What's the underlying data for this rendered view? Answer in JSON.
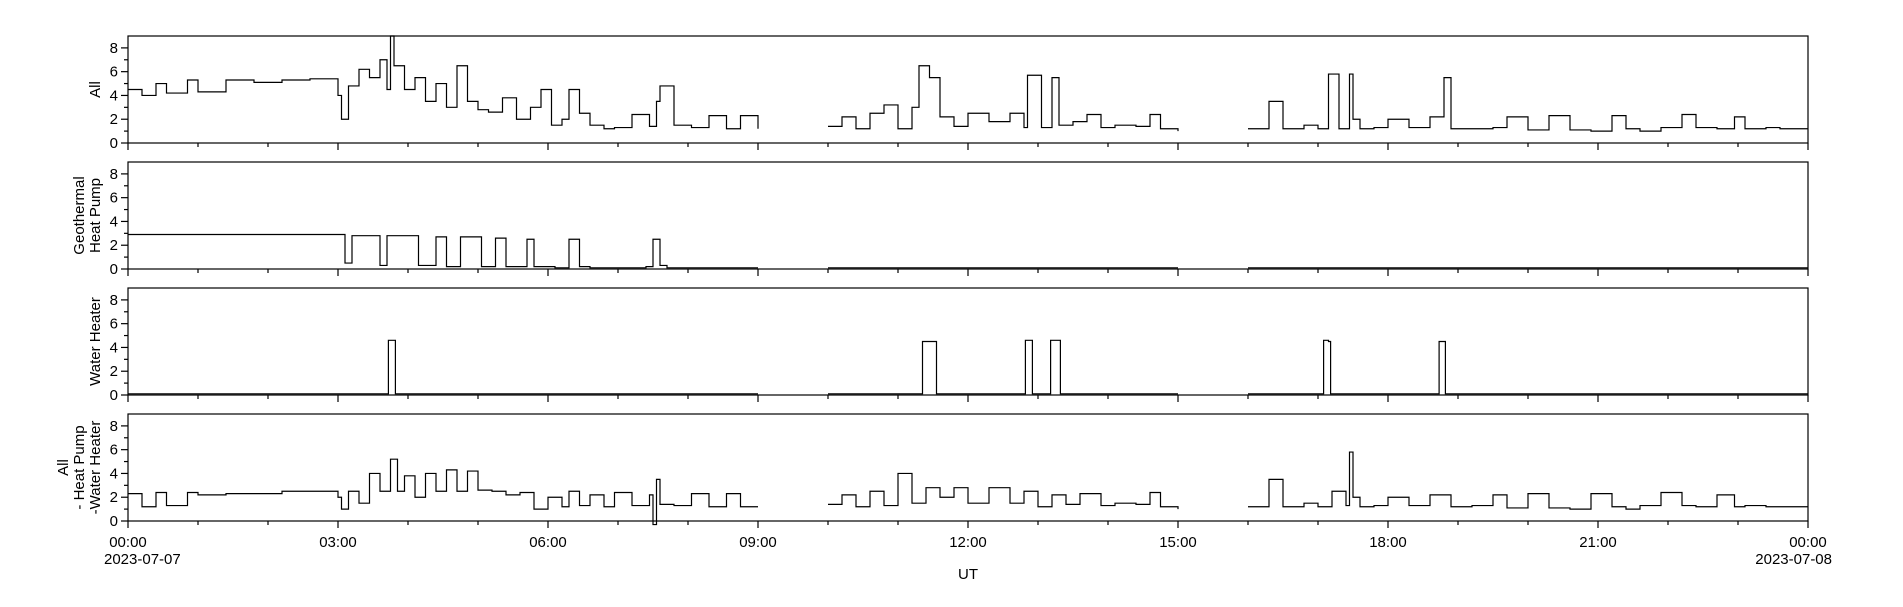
{
  "chart_data": {
    "type": "line",
    "xlabel": "UT",
    "x_ticks": [
      "00:00",
      "03:00",
      "06:00",
      "09:00",
      "12:00",
      "15:00",
      "18:00",
      "21:00",
      "00:00"
    ],
    "x_tick_dates": [
      "2023-07-07",
      "",
      "",
      "",
      "",
      "",
      "",
      "",
      "2023-07-08"
    ],
    "x_range_hours": [
      0,
      24
    ],
    "data_gaps_hours": [
      [
        9.0,
        10.0
      ],
      [
        15.0,
        16.0
      ]
    ],
    "panels": [
      {
        "ylabel_lines": [
          "All"
        ],
        "ylim": [
          0,
          9
        ],
        "yticks": [
          0,
          2,
          4,
          6,
          8
        ],
        "series": {
          "hours": [
            0.0,
            0.2,
            0.4,
            0.55,
            0.85,
            1.0,
            1.4,
            1.8,
            2.2,
            2.6,
            3.0,
            3.05,
            3.15,
            3.3,
            3.45,
            3.6,
            3.7,
            3.75,
            3.8,
            3.95,
            4.1,
            4.25,
            4.4,
            4.55,
            4.7,
            4.85,
            5.0,
            5.15,
            5.35,
            5.55,
            5.75,
            5.9,
            6.05,
            6.2,
            6.3,
            6.45,
            6.6,
            6.8,
            6.95,
            7.2,
            7.45,
            7.55,
            7.6,
            7.8,
            8.05,
            8.3,
            8.55,
            8.75,
            9.0,
            10.0,
            10.2,
            10.4,
            10.6,
            10.8,
            11.0,
            11.2,
            11.3,
            11.45,
            11.6,
            11.8,
            12.0,
            12.3,
            12.6,
            12.8,
            12.85,
            13.05,
            13.2,
            13.3,
            13.5,
            13.7,
            13.9,
            14.1,
            14.4,
            14.6,
            14.75,
            15.0,
            16.0,
            16.3,
            16.5,
            16.8,
            17.0,
            17.15,
            17.3,
            17.45,
            17.5,
            17.6,
            17.8,
            18.0,
            18.3,
            18.6,
            18.8,
            18.9,
            19.2,
            19.5,
            19.7,
            20.0,
            20.3,
            20.6,
            20.9,
            21.2,
            21.4,
            21.6,
            21.9,
            22.2,
            22.4,
            22.7,
            22.95,
            23.1,
            23.4,
            23.6,
            24.0
          ],
          "values": [
            4.5,
            4.0,
            5.0,
            4.2,
            5.3,
            4.3,
            5.3,
            5.1,
            5.3,
            5.4,
            4.0,
            2.0,
            4.8,
            6.2,
            5.5,
            7.0,
            4.5,
            9.0,
            6.5,
            4.5,
            5.5,
            3.5,
            5.0,
            3.0,
            6.5,
            3.5,
            2.8,
            2.6,
            3.8,
            2.0,
            3.0,
            4.5,
            1.5,
            2.0,
            4.5,
            2.5,
            1.5,
            1.2,
            1.3,
            2.4,
            1.4,
            3.5,
            4.8,
            1.5,
            1.3,
            2.3,
            1.2,
            2.3,
            1.2,
            1.4,
            2.2,
            1.2,
            2.5,
            3.2,
            1.2,
            3.0,
            6.5,
            5.5,
            2.2,
            1.4,
            2.5,
            1.8,
            2.5,
            1.3,
            5.7,
            1.3,
            5.5,
            1.5,
            1.8,
            2.4,
            1.3,
            1.5,
            1.4,
            2.4,
            1.2,
            1.0,
            1.2,
            3.5,
            1.2,
            1.5,
            1.2,
            5.8,
            1.2,
            5.8,
            2.0,
            1.2,
            1.3,
            2.0,
            1.3,
            2.2,
            5.5,
            1.2,
            1.2,
            1.3,
            2.2,
            1.1,
            2.3,
            1.1,
            1.0,
            2.3,
            1.2,
            1.0,
            1.3,
            2.4,
            1.3,
            1.2,
            2.2,
            1.2,
            1.3,
            1.2,
            1.2
          ]
        }
      },
      {
        "ylabel_lines": [
          "Geothermal",
          "Heat Pump"
        ],
        "ylim": [
          0,
          9
        ],
        "yticks": [
          0,
          2,
          4,
          6,
          8
        ],
        "series": {
          "hours": [
            0.0,
            3.0,
            3.1,
            3.2,
            3.4,
            3.6,
            3.7,
            3.95,
            4.15,
            4.4,
            4.55,
            4.75,
            5.05,
            5.25,
            5.4,
            5.7,
            5.8,
            6.1,
            6.3,
            6.45,
            6.6,
            6.8,
            6.9,
            7.4,
            7.5,
            7.6,
            7.7,
            8.0,
            9.0,
            10.0,
            15.0,
            16.0,
            24.0
          ],
          "values": [
            2.9,
            2.9,
            0.5,
            2.8,
            2.8,
            0.3,
            2.8,
            2.8,
            0.3,
            2.7,
            0.2,
            2.7,
            0.2,
            2.6,
            0.2,
            2.5,
            0.2,
            0.1,
            2.5,
            0.2,
            0.1,
            0.1,
            0.1,
            0.2,
            2.5,
            0.3,
            0.1,
            0.1,
            0.1,
            0.1,
            0.1,
            0.1,
            0.1
          ]
        }
      },
      {
        "ylabel_lines": [
          "Water Heater"
        ],
        "ylim": [
          0,
          9
        ],
        "yticks": [
          0,
          2,
          4,
          6,
          8
        ],
        "series": {
          "hours": [
            0.0,
            3.7,
            3.72,
            3.8,
            3.82,
            9.0,
            10.0,
            11.3,
            11.35,
            11.5,
            11.55,
            12.8,
            12.82,
            12.9,
            12.92,
            13.15,
            13.18,
            13.3,
            13.32,
            15.0,
            16.0,
            17.05,
            17.08,
            17.15,
            17.18,
            18.7,
            18.73,
            18.8,
            18.82,
            24.0
          ],
          "values": [
            0.1,
            0.1,
            4.6,
            4.6,
            0.1,
            0.1,
            0.1,
            0.1,
            4.5,
            4.5,
            0.1,
            0.1,
            4.6,
            4.6,
            0.1,
            0.1,
            4.6,
            4.6,
            0.1,
            0.1,
            0.1,
            0.1,
            4.6,
            4.5,
            0.1,
            0.1,
            4.5,
            4.5,
            0.1,
            0.1
          ]
        }
      },
      {
        "ylabel_lines": [
          "All",
          "- Heat Pump",
          "-Water Heater"
        ],
        "ylim": [
          0,
          9
        ],
        "yticks": [
          0,
          2,
          4,
          6,
          8
        ],
        "series": {
          "hours": [
            0.0,
            0.2,
            0.4,
            0.55,
            0.85,
            1.0,
            1.4,
            1.8,
            2.2,
            2.6,
            3.0,
            3.05,
            3.15,
            3.3,
            3.45,
            3.6,
            3.75,
            3.85,
            3.95,
            4.1,
            4.25,
            4.4,
            4.55,
            4.7,
            4.85,
            5.0,
            5.2,
            5.4,
            5.6,
            5.8,
            6.0,
            6.2,
            6.3,
            6.45,
            6.6,
            6.8,
            6.95,
            7.2,
            7.45,
            7.5,
            7.55,
            7.6,
            7.8,
            8.05,
            8.3,
            8.55,
            8.75,
            9.0,
            10.0,
            10.2,
            10.4,
            10.6,
            10.8,
            11.0,
            11.2,
            11.4,
            11.6,
            11.8,
            12.0,
            12.3,
            12.6,
            12.8,
            13.0,
            13.2,
            13.4,
            13.6,
            13.9,
            14.1,
            14.4,
            14.6,
            14.75,
            15.0,
            16.0,
            16.3,
            16.5,
            16.8,
            17.0,
            17.2,
            17.4,
            17.45,
            17.5,
            17.6,
            17.8,
            18.0,
            18.3,
            18.6,
            18.9,
            19.2,
            19.5,
            19.7,
            20.0,
            20.3,
            20.6,
            20.9,
            21.2,
            21.4,
            21.6,
            21.9,
            22.2,
            22.4,
            22.7,
            22.95,
            23.1,
            23.4,
            23.6,
            24.0
          ],
          "values": [
            2.3,
            1.2,
            2.4,
            1.3,
            2.4,
            2.2,
            2.3,
            2.3,
            2.5,
            2.5,
            2.0,
            1.0,
            2.5,
            1.5,
            4.0,
            2.5,
            5.2,
            2.5,
            3.8,
            2.0,
            4.0,
            2.5,
            4.3,
            2.5,
            4.2,
            2.6,
            2.5,
            2.2,
            2.4,
            1.0,
            2.0,
            1.2,
            2.5,
            1.3,
            2.2,
            1.2,
            2.4,
            1.3,
            2.2,
            -0.3,
            3.5,
            1.4,
            1.3,
            2.3,
            1.2,
            2.3,
            1.2,
            1.2,
            1.4,
            2.2,
            1.2,
            2.5,
            1.3,
            4.0,
            1.5,
            2.8,
            2.0,
            2.8,
            1.5,
            2.8,
            1.5,
            2.5,
            1.2,
            2.2,
            1.4,
            2.3,
            1.3,
            1.5,
            1.4,
            2.4,
            1.2,
            1.0,
            1.2,
            3.5,
            1.2,
            1.5,
            1.2,
            2.5,
            1.3,
            5.8,
            2.0,
            1.2,
            1.3,
            2.0,
            1.3,
            2.2,
            1.2,
            1.3,
            2.2,
            1.1,
            2.3,
            1.1,
            1.0,
            2.3,
            1.2,
            1.0,
            1.3,
            2.4,
            1.3,
            1.2,
            2.2,
            1.2,
            1.3,
            1.2,
            1.2,
            1.2
          ]
        }
      }
    ]
  }
}
